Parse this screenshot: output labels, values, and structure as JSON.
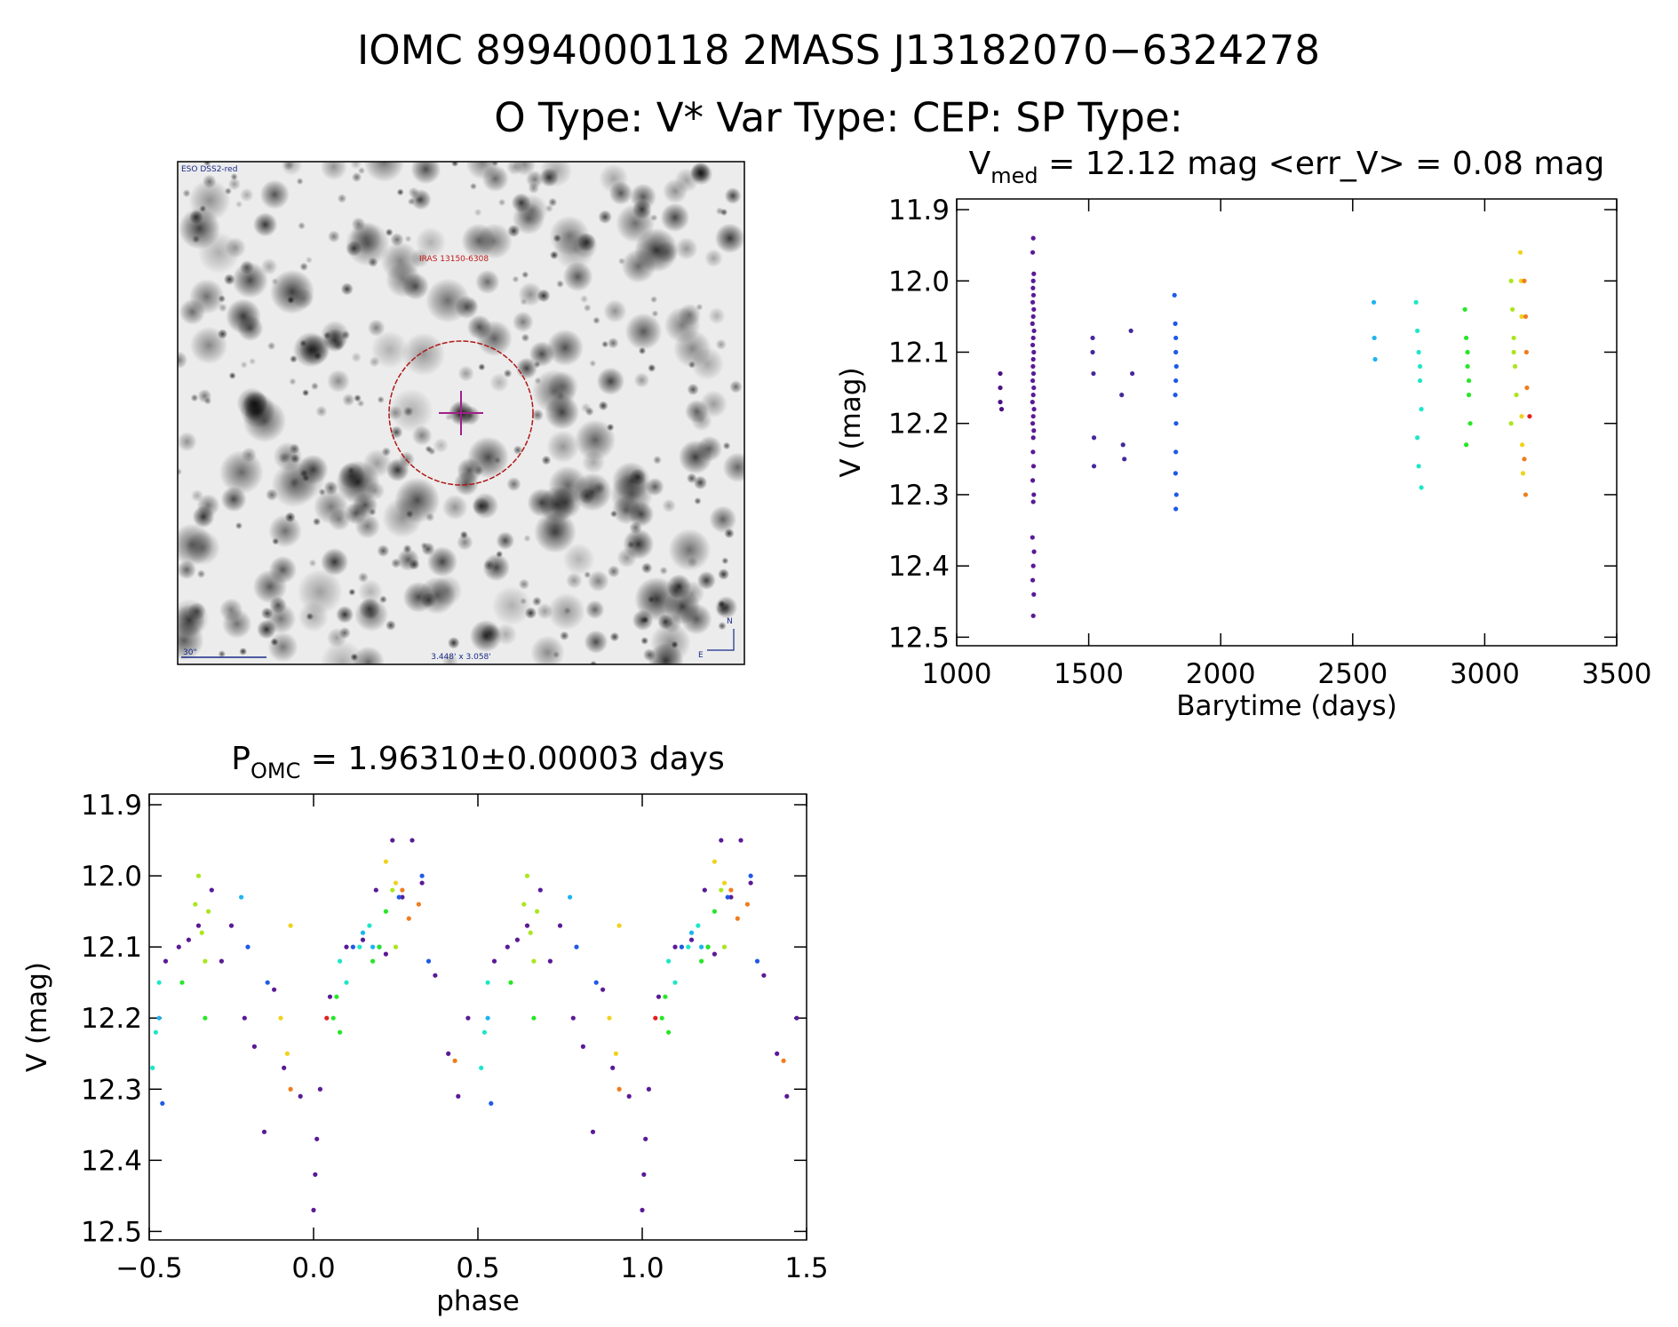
{
  "header": {
    "title": "IOMC 8994000118   2MASS J13182070−6324278",
    "subtitle": "O Type: V*  Var Type: CEP:  SP Type:"
  },
  "image": {
    "survey": "ESO DSS2-red",
    "source": "IRAS 13150-6308",
    "scale": "30\"",
    "size": "3.448' x 3.058'",
    "north": "N",
    "east": "E"
  },
  "chart_data": [
    {
      "type": "scatter",
      "title": [
        "V",
        "med",
        " = 12.12 mag <err_V> = 0.08 mag"
      ],
      "xlabel": "Barytime (days)",
      "ylabel": "V (mag)",
      "xlim": [
        1000,
        3500
      ],
      "xticks": [
        1000,
        1500,
        2000,
        2500,
        3000,
        3500
      ],
      "ylim": [
        12.512,
        11.885
      ],
      "yticks": [
        11.9,
        {
          "value": 12,
          "label": "12.0"
        },
        12.1,
        12.2,
        12.3,
        12.4,
        12.5
      ],
      "series": [
        {
          "color": "#4b0f82",
          "x": [
            1165,
            1165,
            1165,
            1170
          ],
          "values": [
            12.13,
            12.15,
            12.17,
            12.18
          ]
        },
        {
          "color": "#5a1a96",
          "x": [
            1290,
            1288,
            1292,
            1290,
            1289,
            1291,
            1288,
            1292,
            1290,
            1287,
            1293,
            1290,
            1288,
            1292,
            1290,
            1289,
            1291,
            1288,
            1292,
            1290,
            1287,
            1293,
            1290,
            1288,
            1292,
            1290,
            1289,
            1291,
            1288,
            1292,
            1290,
            1287,
            1293,
            1290,
            1288,
            1292,
            1290
          ],
          "values": [
            11.94,
            11.96,
            11.99,
            12.0,
            12.01,
            12.02,
            12.03,
            12.04,
            12.05,
            12.06,
            12.07,
            12.08,
            12.09,
            12.1,
            12.11,
            12.12,
            12.13,
            12.14,
            12.15,
            12.16,
            12.17,
            12.18,
            12.19,
            12.2,
            12.21,
            12.22,
            12.24,
            12.26,
            12.28,
            12.3,
            12.31,
            12.36,
            12.38,
            12.4,
            12.42,
            12.44,
            12.47
          ]
        },
        {
          "color": "#46289b",
          "x": [
            1515,
            1515,
            1518,
            1520,
            1520,
            1625,
            1630,
            1635,
            1660,
            1665
          ],
          "values": [
            12.08,
            12.1,
            12.13,
            12.22,
            12.26,
            12.16,
            12.23,
            12.25,
            12.07,
            12.13
          ]
        },
        {
          "color": "#1e5ae6",
          "x": [
            1825,
            1828,
            1830,
            1830,
            1832,
            1830,
            1828,
            1831,
            1830,
            1829,
            1832,
            1830
          ],
          "values": [
            12.02,
            12.06,
            12.08,
            12.1,
            12.12,
            12.14,
            12.16,
            12.2,
            12.24,
            12.27,
            12.3,
            12.32
          ]
        },
        {
          "color": "#1eb4f0",
          "x": [
            2580,
            2582,
            2585
          ],
          "values": [
            12.03,
            12.08,
            12.11
          ]
        },
        {
          "color": "#1ee6c8",
          "x": [
            2740,
            2745,
            2750,
            2755,
            2760,
            2745,
            2750,
            2760,
            2755
          ],
          "values": [
            12.03,
            12.07,
            12.1,
            12.14,
            12.18,
            12.22,
            12.26,
            12.29,
            12.12
          ]
        },
        {
          "color": "#28e628",
          "x": [
            2925,
            2930,
            2935,
            2940,
            2945,
            2930,
            2935,
            2940
          ],
          "values": [
            12.04,
            12.08,
            12.12,
            12.16,
            12.2,
            12.23,
            12.1,
            12.14
          ]
        },
        {
          "color": "#aae61e",
          "x": [
            3100,
            3105,
            3110,
            3115,
            3120,
            3100,
            3110
          ],
          "values": [
            12.0,
            12.04,
            12.08,
            12.12,
            12.16,
            12.2,
            12.1
          ]
        },
        {
          "color": "#f0d21e",
          "x": [
            3135,
            3138,
            3140,
            3142,
            3145,
            3140
          ],
          "values": [
            11.96,
            12.0,
            12.19,
            12.23,
            12.27,
            12.05
          ]
        },
        {
          "color": "#f07d1e",
          "x": [
            3150,
            3155,
            3158,
            3160,
            3150,
            3155
          ],
          "values": [
            12.0,
            12.05,
            12.1,
            12.15,
            12.25,
            12.3
          ]
        },
        {
          "color": "#e61e1e",
          "x": [
            3170
          ],
          "values": [
            12.19
          ]
        }
      ]
    },
    {
      "type": "scatter",
      "title": [
        "P",
        "OMC",
        " = 1.96310±0.00003 days"
      ],
      "xlabel": "phase",
      "ylabel": "V (mag)",
      "xlim": [
        -0.5,
        1.5
      ],
      "xticks": [
        {
          "value": -0.5,
          "label": "−0.5"
        },
        {
          "value": 0,
          "label": "0.0"
        },
        0.5,
        {
          "value": 1,
          "label": "1.0"
        },
        1.5
      ],
      "ylim": [
        12.512,
        11.885
      ],
      "yticks": [
        11.9,
        {
          "value": 12,
          "label": "12.0"
        },
        12.1,
        12.2,
        12.3,
        12.4,
        12.5
      ],
      "series": [
        {
          "color": "#5a1a96",
          "x": [
            -0.45,
            -0.41,
            -0.38,
            -0.35,
            -0.31,
            -0.28,
            -0.25,
            -0.21,
            -0.18,
            -0.15,
            -0.12,
            -0.09,
            -0.04,
            0.0,
            0.005,
            0.01,
            0.02,
            0.05,
            0.1,
            0.15,
            0.19,
            0.22,
            0.24,
            0.27,
            0.3,
            0.33,
            0.37,
            0.41,
            0.44,
            0.47,
            0.55,
            0.59,
            0.62,
            0.65,
            0.69,
            0.72,
            0.75,
            0.79,
            0.82,
            0.85,
            0.88,
            0.91,
            0.96,
            1.0,
            1.005,
            1.01,
            1.02,
            1.05,
            1.1,
            1.15,
            1.19,
            1.22,
            1.24,
            1.27,
            1.3,
            1.33,
            1.37,
            1.41,
            1.44,
            1.47
          ],
          "values": [
            12.12,
            12.1,
            12.09,
            12.07,
            12.02,
            12.12,
            12.07,
            12.2,
            12.24,
            12.36,
            12.16,
            12.27,
            12.31,
            12.47,
            12.42,
            12.37,
            12.3,
            12.17,
            12.1,
            12.09,
            12.02,
            12.11,
            11.95,
            12.03,
            11.95,
            12.01,
            12.14,
            12.25,
            12.31,
            12.2,
            12.12,
            12.1,
            12.09,
            12.07,
            12.02,
            12.12,
            12.07,
            12.2,
            12.24,
            12.36,
            12.16,
            12.27,
            12.31,
            12.47,
            12.42,
            12.37,
            12.3,
            12.17,
            12.1,
            12.09,
            12.02,
            12.11,
            11.95,
            12.03,
            11.95,
            12.01,
            12.14,
            12.25,
            12.31,
            12.2
          ]
        },
        {
          "color": "#1e5ae6",
          "x": [
            -0.46,
            -0.2,
            -0.14,
            0.12,
            0.2,
            0.26,
            0.33,
            0.35,
            0.54,
            0.8,
            0.86,
            1.12,
            1.2,
            1.26,
            1.33,
            1.35
          ],
          "values": [
            12.32,
            12.1,
            12.15,
            12.1,
            12.1,
            12.03,
            12.0,
            12.12,
            12.32,
            12.1,
            12.15,
            12.1,
            12.1,
            12.03,
            12.0,
            12.12
          ]
        },
        {
          "color": "#1eb4f0",
          "x": [
            -0.47,
            -0.22,
            0.15,
            0.18,
            0.53,
            0.78,
            1.15,
            1.18
          ],
          "values": [
            12.2,
            12.03,
            12.08,
            12.1,
            12.2,
            12.03,
            12.08,
            12.1
          ]
        },
        {
          "color": "#1ee6c8",
          "x": [
            -0.49,
            -0.48,
            -0.47,
            0.08,
            0.1,
            0.14,
            0.17,
            0.51,
            0.52,
            0.53,
            1.08,
            1.1,
            1.14,
            1.17
          ],
          "values": [
            12.27,
            12.22,
            12.15,
            12.12,
            12.15,
            12.1,
            12.07,
            12.27,
            12.22,
            12.15,
            12.12,
            12.15,
            12.1,
            12.07
          ]
        },
        {
          "color": "#28e628",
          "x": [
            -0.4,
            -0.33,
            0.06,
            0.07,
            0.08,
            0.2,
            0.22,
            0.18,
            0.6,
            0.67,
            1.06,
            1.07,
            1.08,
            1.2,
            1.22,
            1.18
          ],
          "values": [
            12.15,
            12.2,
            12.2,
            12.17,
            12.22,
            12.1,
            12.05,
            12.12,
            12.15,
            12.2,
            12.2,
            12.17,
            12.22,
            12.1,
            12.05,
            12.12
          ]
        },
        {
          "color": "#aae61e",
          "x": [
            -0.36,
            -0.35,
            -0.34,
            -0.33,
            -0.32,
            0.25,
            0.24,
            0.64,
            0.65,
            0.66,
            0.67,
            0.68,
            1.25,
            1.24
          ],
          "values": [
            12.04,
            12.0,
            12.08,
            12.12,
            12.05,
            12.1,
            12.02,
            12.04,
            12.0,
            12.08,
            12.12,
            12.05,
            12.1,
            12.02
          ]
        },
        {
          "color": "#f0d21e",
          "x": [
            -0.1,
            -0.08,
            0.22,
            0.25,
            -0.07,
            0.9,
            0.92,
            1.22,
            1.25,
            0.93
          ],
          "values": [
            12.2,
            12.25,
            11.98,
            12.01,
            12.07,
            12.2,
            12.25,
            11.98,
            12.01,
            12.07
          ]
        },
        {
          "color": "#f07d1e",
          "x": [
            -0.07,
            0.27,
            0.29,
            0.32,
            0.43,
            0.93,
            1.27,
            1.29,
            1.32,
            1.43
          ],
          "values": [
            12.3,
            12.02,
            12.06,
            12.04,
            12.26,
            12.3,
            12.02,
            12.06,
            12.04,
            12.26
          ]
        },
        {
          "color": "#e61e1e",
          "x": [
            0.04,
            1.04
          ],
          "values": [
            12.2,
            12.2
          ]
        }
      ]
    }
  ]
}
